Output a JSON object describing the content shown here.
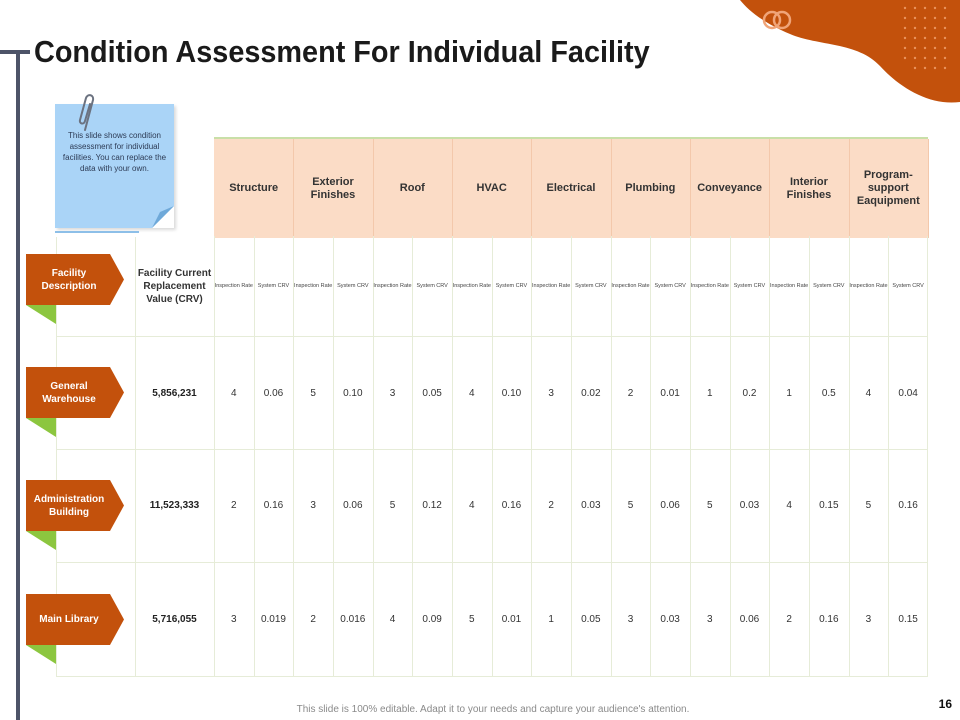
{
  "slide": {
    "title": "Condition Assessment For Individual Facility",
    "note": "This slide shows condition assessment for individual facilities. You can replace the data with your own.",
    "footer": "This slide is 100% editable. Adapt it to your needs and capture your audience's attention.",
    "page_number": "16"
  },
  "colors": {
    "accent": "#c3510c",
    "header_fill": "#fbdcc6",
    "note_fill": "#aad4f7",
    "tag_tail": "#8cc63f",
    "bar": "#4d5468"
  },
  "icons": [
    "paperclip-icon",
    "rings-icon"
  ],
  "table": {
    "row_header": "Facility Description",
    "crv_header": "Facility Current Replacement Value (CRV)",
    "categories": [
      "Structure",
      "Exterior Finishes",
      "Roof",
      "HVAC",
      "Electrical",
      "Plumbing",
      "Conveyance",
      "Interior Finishes",
      "Program-support Eaquipment"
    ],
    "sub_headers": [
      "Inspection Rate",
      "System CRV"
    ],
    "rows": [
      {
        "name": "General Warehouse",
        "crv": "5,856,231",
        "values": [
          "4",
          "0.06",
          "5",
          "0.10",
          "3",
          "0.05",
          "4",
          "0.10",
          "3",
          "0.02",
          "2",
          "0.01",
          "1",
          "0.2",
          "1",
          "0.5",
          "4",
          "0.04"
        ]
      },
      {
        "name": "Administration Building",
        "crv": "11,523,333",
        "values": [
          "2",
          "0.16",
          "3",
          "0.06",
          "5",
          "0.12",
          "4",
          "0.16",
          "2",
          "0.03",
          "5",
          "0.06",
          "5",
          "0.03",
          "4",
          "0.15",
          "5",
          "0.16"
        ]
      },
      {
        "name": "Main Library",
        "crv": "5,716,055",
        "values": [
          "3",
          "0.019",
          "2",
          "0.016",
          "4",
          "0.09",
          "5",
          "0.01",
          "1",
          "0.05",
          "3",
          "0.03",
          "3",
          "0.06",
          "2",
          "0.16",
          "3",
          "0.15"
        ]
      }
    ]
  }
}
